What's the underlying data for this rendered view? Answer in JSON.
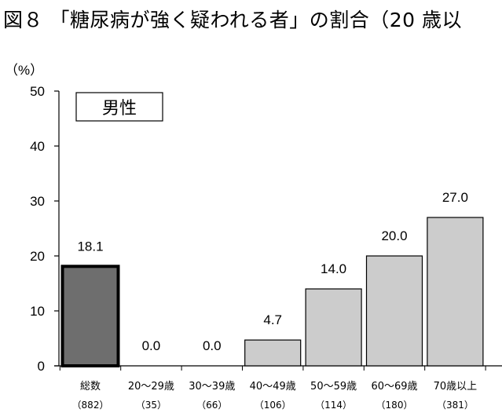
{
  "title": "図８ 「糖尿病が強く疑われる者」の割合（20 歳以",
  "chart_data": {
    "type": "bar",
    "title": "図８ 「糖尿病が強く疑われる者」の割合（20 歳以",
    "unit_label": "（%）",
    "legend_label": "男性",
    "categories": [
      "総数",
      "20～29歳",
      "30～39歳",
      "40～49歳",
      "50～59歳",
      "60～69歳",
      "70歳以上"
    ],
    "counts": [
      "（882）",
      "（35）",
      "（66）",
      "（106）",
      "（114）",
      "（180）",
      "（381）"
    ],
    "values": [
      18.1,
      0.0,
      0.0,
      4.7,
      14.0,
      20.0,
      27.0
    ],
    "value_labels": [
      "18.1",
      "0.0",
      "0.0",
      "4.7",
      "14.0",
      "20.0",
      "27.0"
    ],
    "ylim": [
      0,
      50
    ],
    "yticks": [
      0,
      10,
      20,
      30,
      40,
      50
    ],
    "grid": false,
    "colors": {
      "total_bar": "#6e6e6e",
      "age_bar": "#cccccc",
      "outline": "#000000"
    }
  }
}
